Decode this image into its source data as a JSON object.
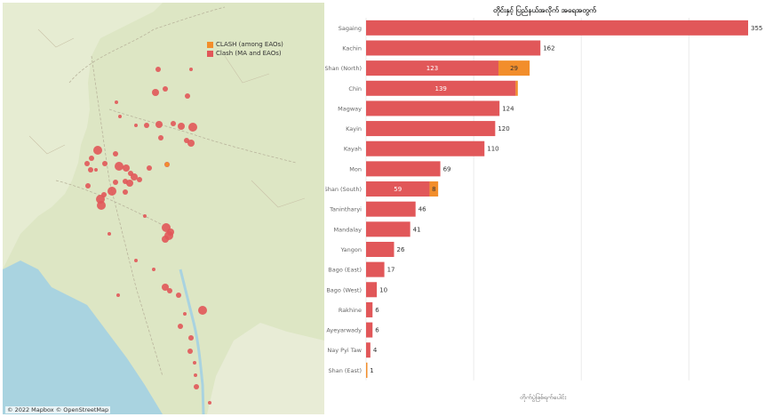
{
  "map": {
    "legend": [
      {
        "label": "CLASH (among EAOs)",
        "color": "#f28e2b"
      },
      {
        "label": "Clash (MA and EAOs)",
        "color": "#e15759"
      }
    ],
    "attribution": "© 2022 Mapbox © OpenStreetMap"
  },
  "chart_data": {
    "type": "bar",
    "orientation": "horizontal",
    "stacked": true,
    "title": "တိုင်းနှင့် ပြည်နယ်အလိုက် အရေအတွက်",
    "xlabel": "တိုက်ပွဲဖြစ်ရက်ပေါင်း",
    "xlim": [
      0,
      355
    ],
    "xticks": [
      0,
      100,
      200,
      300
    ],
    "grid": true,
    "categories": [
      "Sagaing",
      "Kachin",
      "Shan (North)",
      "Chin",
      "Magway",
      "Kayin",
      "Kayah",
      "Mon",
      "Shan (South)",
      "Tanintharyi",
      "Mandalay",
      "Yangon",
      "Bago (East)",
      "Bago (West)",
      "Rakhine",
      "Ayeyarwady",
      "Nay Pyi Taw",
      "Shan (East)"
    ],
    "series": [
      {
        "name": "Clash (MA and EAOs)",
        "color": "#e15759",
        "values": [
          355,
          162,
          123,
          139,
          124,
          120,
          110,
          69,
          59,
          46,
          41,
          26,
          17,
          10,
          6,
          6,
          4,
          0
        ]
      },
      {
        "name": "CLASH (among EAOs)",
        "color": "#f28e2b",
        "values": [
          0,
          0,
          29,
          2,
          0,
          0,
          0,
          0,
          8,
          0,
          0,
          0,
          0,
          0,
          0,
          0,
          0,
          1
        ]
      }
    ],
    "data_labels": [
      "355",
      "162",
      "29",
      "139",
      "124",
      "120",
      "110",
      "69",
      "8",
      "46",
      "41",
      "26",
      "17",
      "10",
      "6",
      "6",
      "4",
      "1"
    ],
    "inner_labels": [
      "",
      "",
      "123",
      "",
      "",
      "",
      "",
      "",
      "59",
      "",
      "",
      "",
      "",
      "",
      "",
      "",
      "",
      ""
    ]
  }
}
